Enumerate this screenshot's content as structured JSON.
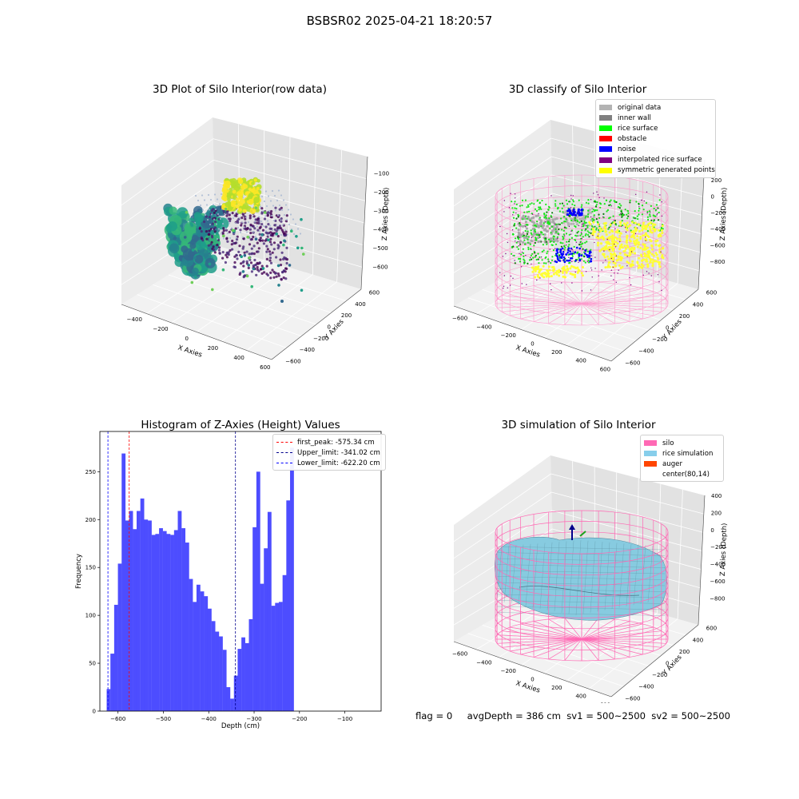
{
  "figure": {
    "title": "BSBSR02 2025-04-21 18:20:57",
    "footer": "flag = 0     avgDepth = 386 cm  sv1 = 500~2500  sv2 = 500~2500"
  },
  "chart_data": [
    {
      "type": "scatter",
      "title": "3D Plot of Silo Interior(row data)",
      "xlabel": "X Axies",
      "ylabel": "Y Axies",
      "zlabel": "Z Axies (Depth)",
      "xticks": [
        -400,
        -200,
        0,
        200,
        400,
        600
      ],
      "yticks": [
        -600,
        -400,
        -200,
        0,
        200,
        400,
        600
      ],
      "zticks": [
        -600,
        -500,
        -400,
        -300,
        -200,
        -100
      ],
      "xlim": [
        -500,
        650
      ],
      "ylim": [
        -650,
        650
      ],
      "zlim": [
        -650,
        -50
      ],
      "colormap": "viridis"
    },
    {
      "type": "scatter",
      "title": "3D classify of Silo Interior",
      "xlabel": "X Axies",
      "ylabel": "Y Axies",
      "zlabel": "Z Axies (Depth)",
      "xticks": [
        -600,
        -400,
        -200,
        0,
        200,
        400,
        600
      ],
      "yticks": [
        -600,
        -400,
        -200,
        0,
        200,
        400,
        600
      ],
      "zticks": [
        -800,
        -600,
        -400,
        -200,
        0,
        200
      ],
      "legend_position": "top-right",
      "legend": [
        {
          "label": "original data",
          "color": "#b3b3b3"
        },
        {
          "label": "inner wall",
          "color": "#808080"
        },
        {
          "label": "rice surface",
          "color": "#00ff00"
        },
        {
          "label": "obstacle",
          "color": "#ff0000"
        },
        {
          "label": "noise",
          "color": "#0000ff"
        },
        {
          "label": "interpolated rice surface",
          "color": "#800080"
        },
        {
          "label": "symmetric generated points",
          "color": "#ffff00"
        }
      ]
    },
    {
      "type": "bar",
      "title": "Histogram of Z-Axies (Height) Values",
      "xlabel": "Depth (cm)",
      "ylabel": "Frequency",
      "color": "#4d4dff",
      "xlim": [
        -640,
        -20
      ],
      "ylim": [
        0,
        292
      ],
      "xticks": [
        -600,
        -500,
        -400,
        -300,
        -200,
        -100
      ],
      "yticks": [
        0,
        50,
        100,
        150,
        200,
        250
      ],
      "bin_start": -625,
      "bin_width": 8.25,
      "values": [
        23,
        60,
        111,
        154,
        269,
        199,
        209,
        190,
        209,
        222,
        200,
        199,
        184,
        185,
        191,
        188,
        185,
        184,
        189,
        209,
        191,
        176,
        138,
        114,
        132,
        125,
        120,
        107,
        94,
        83,
        78,
        64,
        25,
        13,
        37,
        65,
        77,
        71,
        96,
        192,
        250,
        133,
        170,
        208,
        110,
        113,
        114,
        142,
        220,
        275
      ],
      "vlines": [
        {
          "label": "first_peak: -575.34 cm",
          "x": -575.34,
          "color": "#ff0000"
        },
        {
          "label": "Upper_limit: -341.02 cm",
          "x": -341.02,
          "color": "#00008b"
        },
        {
          "label": "Lower_limit: -622.20 cm",
          "x": -622.2,
          "color": "#0000ff"
        }
      ],
      "legend_position": "top-right"
    },
    {
      "type": "surface",
      "title": "3D simulation of Silo Interior",
      "xlabel": "X Axies",
      "ylabel": "Y Axies",
      "zlabel": "Z Axies (Depth)",
      "xticks": [
        -600,
        -400,
        -200,
        0,
        200,
        400,
        600
      ],
      "yticks": [
        -600,
        -400,
        -200,
        0,
        200,
        400,
        600
      ],
      "zticks": [
        -800,
        -600,
        -400,
        -200,
        0,
        200,
        400
      ],
      "legend_position": "top-right",
      "legend": [
        {
          "label": "silo",
          "color": "#ff69b4"
        },
        {
          "label": "rice simulation",
          "color": "#87ceeb"
        },
        {
          "label": "auger",
          "color": "#ff4500"
        },
        {
          "label": "center(80,14)",
          "color": "#ffffff"
        }
      ]
    }
  ]
}
